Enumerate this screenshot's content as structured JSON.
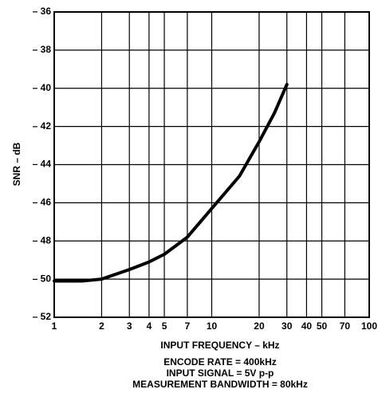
{
  "chart_data": {
    "type": "line",
    "x_label": "INPUT FREQUENCY – kHz",
    "y_label": "SNR – dB",
    "annotations": [
      "ENCODE RATE = 400kHz",
      "INPUT SIGNAL = 5V p-p",
      "MEASUREMENT BANDWIDTH = 80kHz"
    ],
    "x_scale": "log",
    "grid": true,
    "xlim": [
      1,
      100
    ],
    "xticks": [
      1,
      2,
      3,
      4,
      5,
      7,
      10,
      20,
      30,
      40,
      50,
      70,
      100
    ],
    "ylim": [
      -52,
      -36
    ],
    "yticks": [
      {
        "value": -36,
        "label": "– 36"
      },
      {
        "value": -38,
        "label": "– 38"
      },
      {
        "value": -40,
        "label": "– 40"
      },
      {
        "value": -42,
        "label": "– 42"
      },
      {
        "value": -44,
        "label": "– 44"
      },
      {
        "value": -46,
        "label": "– 46"
      },
      {
        "value": -48,
        "label": "– 48"
      },
      {
        "value": -50,
        "label": "– 50"
      },
      {
        "value": -52,
        "label": "– 52"
      }
    ],
    "x": [
      1,
      1.5,
      2,
      3,
      4,
      5,
      7,
      10,
      15,
      20,
      25,
      30
    ],
    "series": [
      {
        "color": "#000000",
        "values": [
          -50.1,
          -50.1,
          -50.0,
          -49.5,
          -49.1,
          -48.7,
          -47.8,
          -46.3,
          -44.6,
          -42.8,
          -41.3,
          -39.8
        ]
      }
    ]
  }
}
